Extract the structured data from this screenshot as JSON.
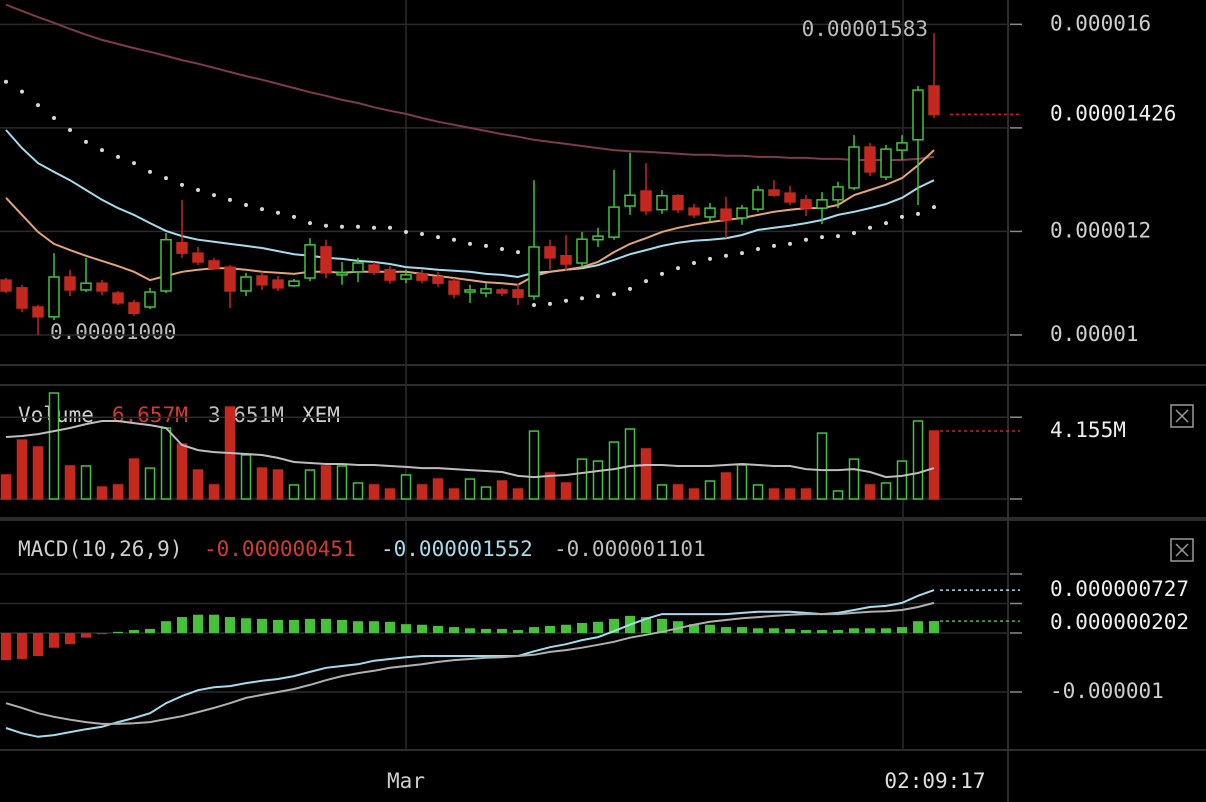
{
  "chart_data": {
    "type": "candlestick",
    "time": {
      "xticks": [
        {
          "value": 25,
          "label": "Mar"
        }
      ],
      "current": "02:09:17"
    },
    "price": {
      "ylim": [
        9.42e-06,
        1.647e-05
      ],
      "yticks": [
        1.6e-05,
        1.2e-05,
        1e-05
      ],
      "gridlines": [
        1.4e-05
      ],
      "up_color": "#41c441",
      "down_color": "#c4281f",
      "open": [
        1.106e-05,
        1.091e-05,
        1.054e-05,
        1.035e-05,
        1.112e-05,
        1.087e-05,
        1.1e-05,
        1.081e-05,
        1.062e-05,
        1.054e-05,
        1.085e-05,
        1.178e-05,
        1.158e-05,
        1.143e-05,
        1.131e-05,
        1.085e-05,
        1.114e-05,
        1.106e-05,
        1.095e-05,
        1.11e-05,
        1.17e-05,
        1.116e-05,
        1.122e-05,
        1.135e-05,
        1.126e-05,
        1.108e-05,
        1.118e-05,
        1.112e-05,
        1.104e-05,
        1.083e-05,
        1.081e-05,
        1.087e-05,
        1.087e-05,
        1.075e-05,
        1.17e-05,
        1.153e-05,
        1.139e-05,
        1.184e-05,
        1.189e-05,
        1.249e-05,
        1.278e-05,
        1.242e-05,
        1.269e-05,
        1.245e-05,
        1.228e-05,
        1.243e-05,
        1.226e-05,
        1.243e-05,
        1.28e-05,
        1.274e-05,
        1.261e-05,
        1.245e-05,
        1.261e-05,
        1.284e-05,
        1.363e-05,
        1.305e-05,
        1.357e-05,
        1.377e-05,
        1.481e-05
      ],
      "high": [
        1.11e-05,
        1.097e-05,
        1.058e-05,
        1.158e-05,
        1.126e-05,
        1.149e-05,
        1.106e-05,
        1.085e-05,
        1.068e-05,
        1.091e-05,
        1.197e-05,
        1.261e-05,
        1.17e-05,
        1.149e-05,
        1.135e-05,
        1.12e-05,
        1.122e-05,
        1.114e-05,
        1.108e-05,
        1.187e-05,
        1.184e-05,
        1.141e-05,
        1.149e-05,
        1.141e-05,
        1.133e-05,
        1.126e-05,
        1.126e-05,
        1.122e-05,
        1.11e-05,
        1.097e-05,
        1.1e-05,
        1.091e-05,
        1.099e-05,
        1.299e-05,
        1.184e-05,
        1.193e-05,
        1.199e-05,
        1.207e-05,
        1.319e-05,
        1.352e-05,
        1.332e-05,
        1.28e-05,
        1.272e-05,
        1.253e-05,
        1.255e-05,
        1.267e-05,
        1.251e-05,
        1.288e-05,
        1.299e-05,
        1.288e-05,
        1.27e-05,
        1.276e-05,
        1.296e-05,
        1.386e-05,
        1.371e-05,
        1.367e-05,
        1.386e-05,
        1.481e-05,
        1.583e-05
      ],
      "low": [
        1.081e-05,
        1.044e-05,
        1e-05,
        1.029e-05,
        1.075e-05,
        1.083e-05,
        1.077e-05,
        1.058e-05,
        1.037e-05,
        1.05e-05,
        1.081e-05,
        1.149e-05,
        1.135e-05,
        1.126e-05,
        1.052e-05,
        1.075e-05,
        1.087e-05,
        1.085e-05,
        1.093e-05,
        1.104e-05,
        1.11e-05,
        1.097e-05,
        1.102e-05,
        1.116e-05,
        1.099e-05,
        1.1e-05,
        1.1e-05,
        1.093e-05,
        1.071e-05,
        1.062e-05,
        1.073e-05,
        1.075e-05,
        1.058e-05,
        1.068e-05,
        1.126e-05,
        1.124e-05,
        1.131e-05,
        1.17e-05,
        1.184e-05,
        1.232e-05,
        1.232e-05,
        1.234e-05,
        1.236e-05,
        1.226e-05,
        1.218e-05,
        1.187e-05,
        1.213e-05,
        1.238e-05,
        1.267e-05,
        1.251e-05,
        1.23e-05,
        1.214e-05,
        1.245e-05,
        1.28e-05,
        1.307e-05,
        1.299e-05,
        1.338e-05,
        1.251e-05,
        1.419e-05
      ],
      "close": [
        1.085e-05,
        1.052e-05,
        1.035e-05,
        1.112e-05,
        1.087e-05,
        1.1e-05,
        1.085e-05,
        1.062e-05,
        1.042e-05,
        1.083e-05,
        1.184e-05,
        1.158e-05,
        1.141e-05,
        1.129e-05,
        1.085e-05,
        1.112e-05,
        1.097e-05,
        1.091e-05,
        1.104e-05,
        1.174e-05,
        1.12e-05,
        1.12e-05,
        1.139e-05,
        1.122e-05,
        1.106e-05,
        1.116e-05,
        1.106e-05,
        1.1e-05,
        1.079e-05,
        1.087e-05,
        1.089e-05,
        1.081e-05,
        1.073e-05,
        1.17e-05,
        1.149e-05,
        1.137e-05,
        1.185e-05,
        1.191e-05,
        1.247e-05,
        1.27e-05,
        1.24e-05,
        1.269e-05,
        1.242e-05,
        1.232e-05,
        1.245e-05,
        1.222e-05,
        1.245e-05,
        1.28e-05,
        1.27e-05,
        1.257e-05,
        1.245e-05,
        1.261e-05,
        1.286e-05,
        1.363e-05,
        1.315e-05,
        1.359e-05,
        1.371e-05,
        1.473e-05,
        1.426e-05
      ],
      "low_label": "0.00001000",
      "lines": [
        {
          "color": "#7d3b4c",
          "values": [
            1.638e-05,
            1.626e-05,
            1.614e-05,
            1.603e-05,
            1.591e-05,
            1.58e-05,
            1.57e-05,
            1.562e-05,
            1.554e-05,
            1.547e-05,
            1.539e-05,
            1.531e-05,
            1.524e-05,
            1.516e-05,
            1.508e-05,
            1.5e-05,
            1.493e-05,
            1.485e-05,
            1.477e-05,
            1.469e-05,
            1.462e-05,
            1.454e-05,
            1.448e-05,
            1.44e-05,
            1.433e-05,
            1.427e-05,
            1.419e-05,
            1.412e-05,
            1.406e-05,
            1.4e-05,
            1.394e-05,
            1.388e-05,
            1.383e-05,
            1.377e-05,
            1.373e-05,
            1.369e-05,
            1.365e-05,
            1.361e-05,
            1.357e-05,
            1.355e-05,
            1.354e-05,
            1.352e-05,
            1.35e-05,
            1.348e-05,
            1.348e-05,
            1.346e-05,
            1.346e-05,
            1.344e-05,
            1.344e-05,
            1.342e-05,
            1.342e-05,
            1.34e-05,
            1.34e-05,
            1.338e-05,
            1.338e-05,
            1.338e-05,
            1.338e-05,
            1.34e-05,
            1.344e-05
          ]
        },
        {
          "color": "#a5dced",
          "values": [
            1.396e-05,
            1.361e-05,
            1.332e-05,
            1.315e-05,
            1.299e-05,
            1.28e-05,
            1.261e-05,
            1.245e-05,
            1.232e-05,
            1.216e-05,
            1.201e-05,
            1.191e-05,
            1.184e-05,
            1.18e-05,
            1.176e-05,
            1.172e-05,
            1.168e-05,
            1.162e-05,
            1.156e-05,
            1.153e-05,
            1.149e-05,
            1.147e-05,
            1.143e-05,
            1.141e-05,
            1.137e-05,
            1.131e-05,
            1.129e-05,
            1.126e-05,
            1.124e-05,
            1.122e-05,
            1.118e-05,
            1.116e-05,
            1.112e-05,
            1.12e-05,
            1.122e-05,
            1.126e-05,
            1.129e-05,
            1.135e-05,
            1.145e-05,
            1.156e-05,
            1.164e-05,
            1.172e-05,
            1.178e-05,
            1.182e-05,
            1.184e-05,
            1.187e-05,
            1.193e-05,
            1.203e-05,
            1.207e-05,
            1.211e-05,
            1.216e-05,
            1.222e-05,
            1.232e-05,
            1.238e-05,
            1.245e-05,
            1.253e-05,
            1.265e-05,
            1.284e-05,
            1.299e-05
          ]
        },
        {
          "color": "#e3a476",
          "values": [
            1.265e-05,
            1.232e-05,
            1.199e-05,
            1.176e-05,
            1.164e-05,
            1.153e-05,
            1.143e-05,
            1.133e-05,
            1.122e-05,
            1.106e-05,
            1.114e-05,
            1.122e-05,
            1.126e-05,
            1.129e-05,
            1.129e-05,
            1.126e-05,
            1.122e-05,
            1.12e-05,
            1.118e-05,
            1.122e-05,
            1.122e-05,
            1.12e-05,
            1.122e-05,
            1.122e-05,
            1.122e-05,
            1.122e-05,
            1.118e-05,
            1.114e-05,
            1.11e-05,
            1.106e-05,
            1.102e-05,
            1.1e-05,
            1.097e-05,
            1.114e-05,
            1.122e-05,
            1.126e-05,
            1.131e-05,
            1.141e-05,
            1.16e-05,
            1.176e-05,
            1.187e-05,
            1.199e-05,
            1.207e-05,
            1.213e-05,
            1.218e-05,
            1.222e-05,
            1.226e-05,
            1.232e-05,
            1.238e-05,
            1.242e-05,
            1.245e-05,
            1.245e-05,
            1.251e-05,
            1.27e-05,
            1.28e-05,
            1.29e-05,
            1.303e-05,
            1.328e-05,
            1.357e-05
          ]
        }
      ],
      "sar": {
        "color": "#d8d8d8",
        "values": [
          1.489e-05,
          1.47e-05,
          1.444e-05,
          1.419e-05,
          1.396e-05,
          1.373e-05,
          1.357e-05,
          1.344e-05,
          1.332e-05,
          1.315e-05,
          1.303e-05,
          1.29e-05,
          1.28e-05,
          1.27e-05,
          1.261e-05,
          1.251e-05,
          1.243e-05,
          1.236e-05,
          1.228e-05,
          1.216e-05,
          1.211e-05,
          1.209e-05,
          1.209e-05,
          1.207e-05,
          1.207e-05,
          1.199e-05,
          1.195e-05,
          1.189e-05,
          1.184e-05,
          1.176e-05,
          1.172e-05,
          1.166e-05,
          1.16e-05,
          1.058e-05,
          1.06e-05,
          1.066e-05,
          1.071e-05,
          1.075e-05,
          1.079e-05,
          1.089e-05,
          1.104e-05,
          1.118e-05,
          1.129e-05,
          1.139e-05,
          1.147e-05,
          1.153e-05,
          1.158e-05,
          1.166e-05,
          1.172e-05,
          1.176e-05,
          1.184e-05,
          1.189e-05,
          1.191e-05,
          1.197e-05,
          1.207e-05,
          1.216e-05,
          1.228e-05,
          1.234e-05,
          1.247e-05
        ]
      }
    },
    "volume": {
      "title": "Volume",
      "legend_values": [
        "6.657M",
        "3.651M"
      ],
      "unit": "XEM",
      "ylim": [
        0,
        6970000
      ],
      "gridlines": [
        0,
        5000000
      ],
      "values": [
        1470000,
        3600000,
        3180000,
        6480000,
        2020000,
        2020000,
        730000,
        860000,
        2440000,
        1890000,
        4340000,
        3360000,
        1770000,
        860000,
        5620000,
        2690000,
        1890000,
        1770000,
        860000,
        1770000,
        2020000,
        2020000,
        980000,
        860000,
        610000,
        1470000,
        860000,
        1220000,
        610000,
        1220000,
        730000,
        1100000,
        610000,
        4150000,
        1590000,
        980000,
        2440000,
        2320000,
        3480000,
        4280000,
        3060000,
        860000,
        860000,
        610000,
        1100000,
        1590000,
        2080000,
        860000,
        610000,
        610000,
        610000,
        4030000,
        490000,
        2440000,
        860000,
        980000,
        2320000,
        4770000,
        4155000
      ],
      "last_label": "4.155M",
      "ma": {
        "color": "#bdbdbd",
        "values": [
          3790000,
          3850000,
          3970000,
          4150000,
          4340000,
          4580000,
          4770000,
          4770000,
          4640000,
          4520000,
          4340000,
          3300000,
          2990000,
          2870000,
          2810000,
          2750000,
          2690000,
          2510000,
          2260000,
          2200000,
          2140000,
          2140000,
          2080000,
          2080000,
          2020000,
          1960000,
          1890000,
          1890000,
          1830000,
          1770000,
          1710000,
          1650000,
          1410000,
          1340000,
          1410000,
          1470000,
          1590000,
          1710000,
          1830000,
          2020000,
          2080000,
          2080000,
          2020000,
          2020000,
          2020000,
          2080000,
          2140000,
          2080000,
          2020000,
          2020000,
          1830000,
          1770000,
          1770000,
          1830000,
          1650000,
          1340000,
          1410000,
          1590000,
          1890000
        ]
      }
    },
    "macd": {
      "title": "MACD(10,26,9)",
      "legend": [
        {
          "text": "-0.000000451",
          "color": "#d23b30"
        },
        {
          "text": "-0.000001552",
          "color": "#a5dced"
        },
        {
          "text": "-0.000001101",
          "color": "#bdbdbd"
        }
      ],
      "ylim": [
        -1.983e-06,
        1.915e-06
      ],
      "yticks": [
        -1e-06
      ],
      "gridlines": [
        1e-06,
        5e-07,
        0
      ],
      "histogram": {
        "up_color": "#45c23a",
        "down_color": "#c4281f",
        "last_label": "0.000000202",
        "values": [
          -4.6e-07,
          -4.4e-07,
          -3.9e-07,
          -2.5e-07,
          -1.9e-07,
          -8e-08,
          -2e-08,
          2e-08,
          5e-08,
          7e-08,
          2e-07,
          2.7e-07,
          3.1e-07,
          3.1e-07,
          2.7e-07,
          2.5e-07,
          2.4e-07,
          2.2e-07,
          2.2e-07,
          2.4e-07,
          2.4e-07,
          2.2e-07,
          2e-07,
          2e-07,
          1.9e-07,
          1.5e-07,
          1.4e-07,
          1.2e-07,
          1e-07,
          8e-08,
          7e-08,
          7e-08,
          5e-08,
          1e-07,
          1.2e-07,
          1.4e-07,
          1.7e-07,
          1.9e-07,
          2.4e-07,
          2.9e-07,
          2.7e-07,
          2.4e-07,
          2e-07,
          1.5e-07,
          1.4e-07,
          1e-07,
          1e-07,
          8e-08,
          8e-08,
          7e-08,
          5e-08,
          5e-08,
          5e-08,
          8e-08,
          8e-08,
          8e-08,
          1e-07,
          2e-07,
          2.02e-07
        ]
      },
      "lines": [
        {
          "color": "#a5dced",
          "last_label": "0.000000727",
          "values": [
            -1.61e-06,
            -1.7e-06,
            -1.76e-06,
            -1.73e-06,
            -1.68e-06,
            -1.63e-06,
            -1.59e-06,
            -1.51e-06,
            -1.44e-06,
            -1.36e-06,
            -1.19e-06,
            -1.07e-06,
            -9.7e-07,
            -9.2e-07,
            -9e-07,
            -8.5e-07,
            -8.1e-07,
            -7.8e-07,
            -7.3e-07,
            -6.6e-07,
            -5.9e-07,
            -5.6e-07,
            -5.3e-07,
            -4.7e-07,
            -4.4e-07,
            -4.1e-07,
            -3.9e-07,
            -3.9e-07,
            -3.9e-07,
            -3.9e-07,
            -3.9e-07,
            -3.9e-07,
            -3.9e-07,
            -3.1e-07,
            -2.4e-07,
            -1.9e-07,
            -1.2e-07,
            -7e-08,
            3e-08,
            1.4e-07,
            2.4e-07,
            3.2e-07,
            3.2e-07,
            3.2e-07,
            3.2e-07,
            3.2e-07,
            3.4e-07,
            3.6e-07,
            3.6e-07,
            3.6e-07,
            3.4e-07,
            3.2e-07,
            3.4e-07,
            3.9e-07,
            4.4e-07,
            4.6e-07,
            5.1e-07,
            6.3e-07,
            7.27e-07
          ]
        },
        {
          "color": "#b0b0b0",
          "values": [
            -1.19e-06,
            -1.27e-06,
            -1.36e-06,
            -1.42e-06,
            -1.47e-06,
            -1.51e-06,
            -1.54e-06,
            -1.54e-06,
            -1.53e-06,
            -1.51e-06,
            -1.46e-06,
            -1.41e-06,
            -1.34e-06,
            -1.27e-06,
            -1.19e-06,
            -1.1e-06,
            -1.05e-06,
            -1e-06,
            -9.5e-07,
            -8.8e-07,
            -8e-07,
            -7.3e-07,
            -6.8e-07,
            -6.4e-07,
            -5.9e-07,
            -5.6e-07,
            -5.3e-07,
            -4.9e-07,
            -4.6e-07,
            -4.4e-07,
            -4.2e-07,
            -4.1e-07,
            -3.9e-07,
            -3.7e-07,
            -3.2e-07,
            -2.9e-07,
            -2.5e-07,
            -2e-07,
            -1.5e-07,
            -8e-08,
            -3e-08,
            2e-08,
            8e-08,
            1.4e-07,
            1.9e-07,
            2.2e-07,
            2.5e-07,
            2.7e-07,
            2.9e-07,
            3.1e-07,
            3.2e-07,
            3.2e-07,
            3.2e-07,
            3.4e-07,
            3.6e-07,
            3.7e-07,
            3.9e-07,
            4.4e-07,
            5.1e-07
          ]
        }
      ]
    }
  }
}
